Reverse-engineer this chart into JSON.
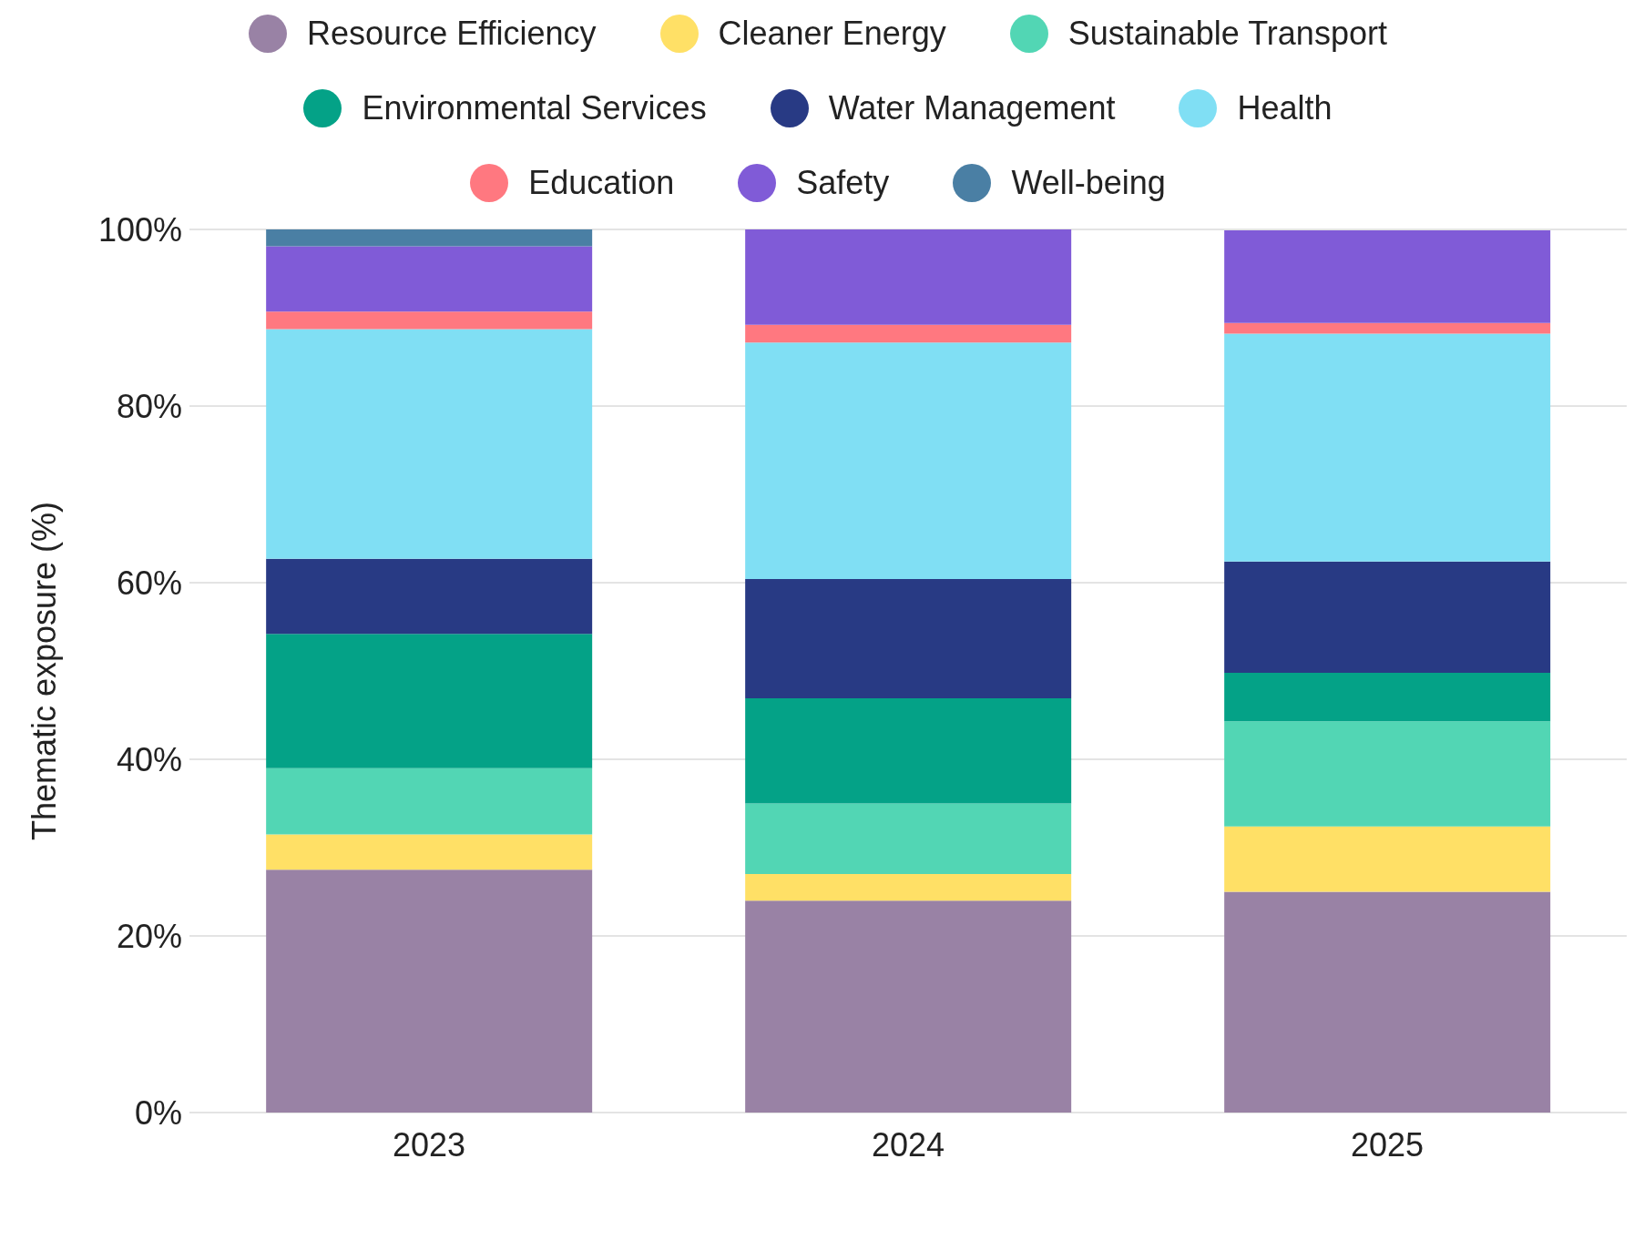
{
  "chart_data": {
    "type": "bar",
    "stacked": true,
    "ylabel": "Thematic exposure (%)",
    "categories": [
      "2023",
      "2024",
      "2025"
    ],
    "series": [
      {
        "name": "Resource Efficiency",
        "color": "#9982a5",
        "values": [
          27.5,
          24.0,
          25.0
        ]
      },
      {
        "name": "Cleaner Energy",
        "color": "#ffe066",
        "values": [
          4.0,
          3.0,
          7.4
        ]
      },
      {
        "name": "Sustainable Transport",
        "color": "#52d6b4",
        "values": [
          7.5,
          8.0,
          11.9
        ]
      },
      {
        "name": "Environmental Services",
        "color": "#04a287",
        "values": [
          15.2,
          11.9,
          5.5
        ]
      },
      {
        "name": "Water Management",
        "color": "#283a84",
        "values": [
          8.5,
          13.5,
          12.6
        ]
      },
      {
        "name": "Health",
        "color": "#80dff4",
        "values": [
          26.0,
          26.8,
          25.8
        ]
      },
      {
        "name": "Education",
        "color": "#ff7880",
        "values": [
          2.0,
          2.0,
          1.2
        ]
      },
      {
        "name": "Safety",
        "color": "#805bd7",
        "values": [
          7.4,
          10.8,
          10.5
        ]
      },
      {
        "name": "Well-being",
        "color": "#4a7fa4",
        "values": [
          1.9,
          0,
          0
        ]
      }
    ],
    "ylim": [
      0,
      100
    ],
    "yticks": [
      {
        "value": 0,
        "label": "0%"
      },
      {
        "value": 20,
        "label": "20%"
      },
      {
        "value": 40,
        "label": "40%"
      },
      {
        "value": 60,
        "label": "60%"
      },
      {
        "value": 80,
        "label": "80%"
      },
      {
        "value": 100,
        "label": "100%"
      }
    ],
    "grid": "y",
    "legend": "top"
  }
}
